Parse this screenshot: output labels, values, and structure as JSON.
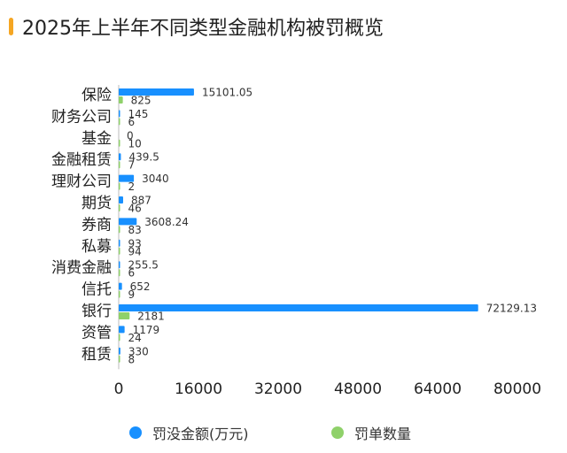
{
  "header": {
    "title": "2025年上半年不同类型金融机构被罚概览"
  },
  "colors": {
    "accent": "#f5a623",
    "fines": "#1890ff",
    "count": "#8fd16a"
  },
  "chart_data": {
    "type": "bar",
    "orientation": "horizontal",
    "title": "2025年上半年不同类型金融机构被罚概览",
    "categories": [
      "保险",
      "财务公司",
      "基金",
      "金融租赁",
      "理财公司",
      "期货",
      "券商",
      "私募",
      "消费金融",
      "信托",
      "银行",
      "资管",
      "租赁"
    ],
    "series": [
      {
        "name": "罚没金额(万元)",
        "values": [
          15101.05,
          145,
          0,
          439.5,
          3040,
          887,
          3608.24,
          93,
          255.5,
          652,
          72129.13,
          1179,
          330
        ],
        "labels": [
          "15101.05",
          "145",
          "0",
          "439.5",
          "3040",
          "887",
          "3608.24",
          "93",
          "255.5",
          "652",
          "72129.13",
          "1179",
          "330"
        ]
      },
      {
        "name": "罚单数量",
        "values": [
          825,
          6,
          10,
          7,
          2,
          46,
          83,
          94,
          6,
          9,
          2181,
          24,
          8
        ],
        "labels": [
          "825",
          "6",
          "10",
          "7",
          "2",
          "46",
          "83",
          "94",
          "6",
          "9",
          "2181",
          "24",
          "8"
        ]
      }
    ],
    "xlim": [
      0,
      80000
    ],
    "xticks": [
      "0",
      "16000",
      "32000",
      "48000",
      "64000",
      "80000"
    ],
    "grid": false,
    "legend_position": "bottom"
  }
}
